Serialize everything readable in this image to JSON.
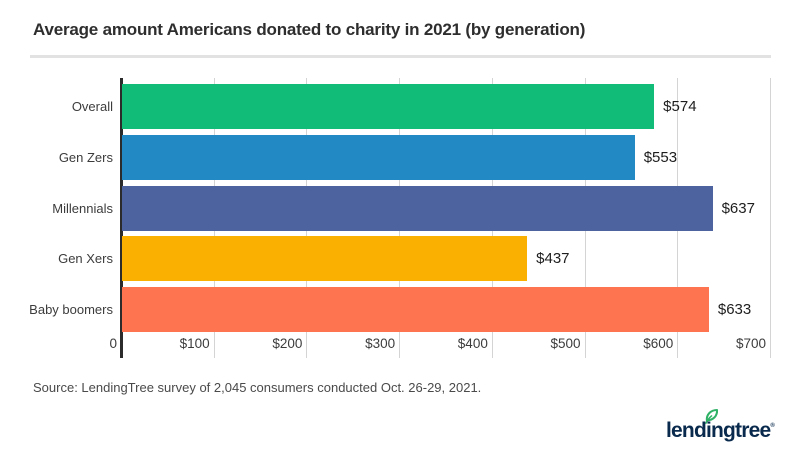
{
  "header": {
    "title": "Average amount Americans donated to charity in 2021 (by generation)"
  },
  "chart_data": {
    "type": "bar",
    "orientation": "horizontal",
    "title": "Average amount Americans donated to charity in 2021 (by generation)",
    "categories": [
      "Overall",
      "Gen Zers",
      "Millennials",
      "Gen Xers",
      "Baby boomers"
    ],
    "values": [
      574,
      553,
      637,
      437,
      633
    ],
    "value_labels": [
      "$574",
      "$553",
      "$637",
      "$437",
      "$633"
    ],
    "bar_colors": [
      "#10BC78",
      "#2289C5",
      "#4D63A0",
      "#F9B001",
      "#FE7350"
    ],
    "xlabel": "",
    "ylabel": "",
    "xlim": [
      0,
      700
    ],
    "x_ticks": [
      0,
      100,
      200,
      300,
      400,
      500,
      600,
      700
    ],
    "x_tick_labels": [
      "0",
      "$100",
      "$200",
      "$300",
      "$400",
      "$500",
      "$600",
      "$700"
    ],
    "grid": "vertical-gridlines",
    "legend": "none",
    "axis_line_color": "#2b2b2b",
    "gridline_color": "#d4d4d4"
  },
  "footer": {
    "source": "Source: LendingTree survey of 2,045 consumers conducted Oct. 26-29, 2021."
  },
  "logo": {
    "brand": "lendingtree",
    "mark": "®",
    "text_color": "#0A2A4D",
    "leaf_color": "#2FB166"
  }
}
